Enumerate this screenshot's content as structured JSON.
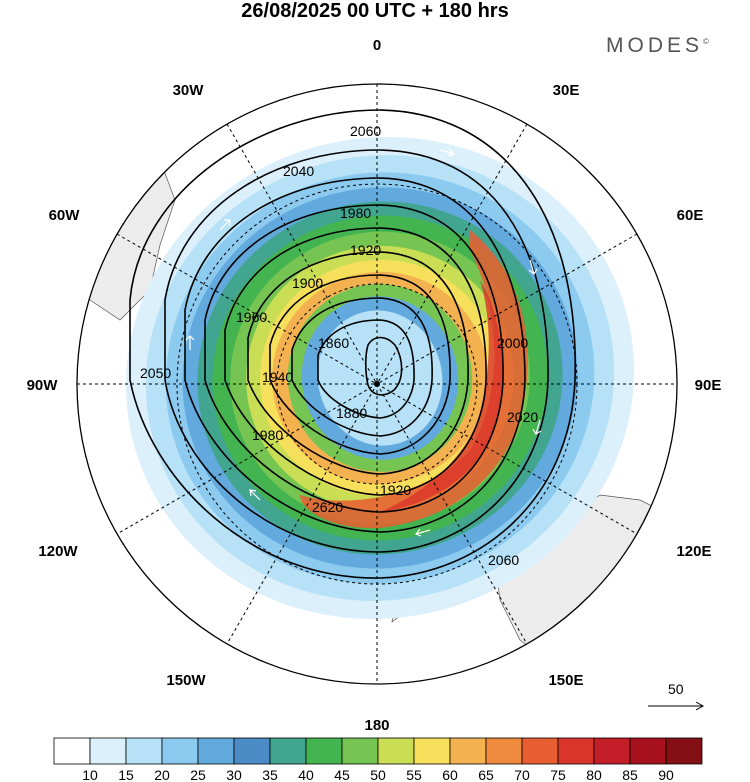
{
  "title": "26/08/2025  00 UTC  + 180 hrs",
  "brand": "MODES",
  "brand_mark": "©",
  "longitude_labels": [
    "0",
    "30E",
    "60E",
    "90E",
    "120E",
    "150E",
    "180",
    "150W",
    "120W",
    "90W",
    "60W",
    "30W"
  ],
  "contour_labels": [
    "2060",
    "2040",
    "1980",
    "1920",
    "1900",
    "1860",
    "1880",
    "1940",
    "1960",
    "2020",
    "2000",
    "2050",
    "2620"
  ],
  "vector_reference": "50",
  "colorbar": {
    "ticks": [
      "10",
      "15",
      "20",
      "25",
      "30",
      "35",
      "40",
      "45",
      "50",
      "55",
      "60",
      "65",
      "70",
      "75",
      "80",
      "85",
      "90"
    ],
    "colors": [
      "#ffffff",
      "#dcf0fb",
      "#b6e1f6",
      "#8ccaef",
      "#62a9dd",
      "#4b8cc6",
      "#41a58f",
      "#44b450",
      "#76c552",
      "#c9dd55",
      "#f6e05b",
      "#f3b150",
      "#ef8a3f",
      "#e95d33",
      "#d9352b",
      "#c31d28",
      "#a8121f",
      "#841015"
    ]
  }
}
